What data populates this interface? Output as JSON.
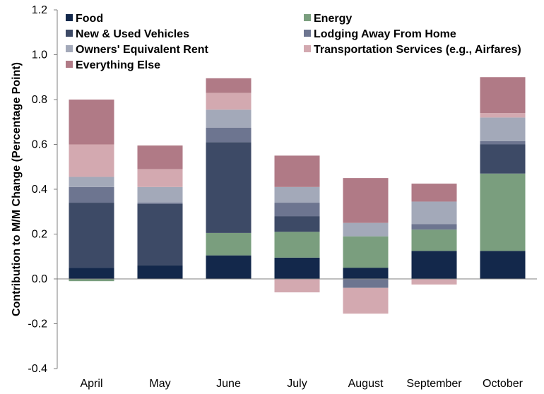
{
  "chart_data": {
    "type": "bar",
    "stacked": true,
    "categories": [
      "April",
      "May",
      "June",
      "July",
      "August",
      "September",
      "October"
    ],
    "ylabel": "Contribution to M/M Change (Percentage Point)",
    "ylim": [
      -0.4,
      1.2
    ],
    "yticks": [
      -0.4,
      -0.2,
      0.0,
      0.2,
      0.4,
      0.6,
      0.8,
      1.0,
      1.2
    ],
    "ytick_labels": [
      "-0.4",
      "-0.2",
      "0.0",
      "0.2",
      "0.4",
      "0.6",
      "0.8",
      "1.0",
      "1.2"
    ],
    "grid": false,
    "legend_position": "top",
    "series": [
      {
        "name": "Food",
        "color": "#13284b",
        "values": [
          0.05,
          0.06,
          0.105,
          0.095,
          0.05,
          0.125,
          0.125
        ]
      },
      {
        "name": "Energy",
        "color": "#7a9e7e",
        "values": [
          -0.01,
          0.0,
          0.1,
          0.115,
          0.14,
          0.095,
          0.345
        ]
      },
      {
        "name": "New & Used Vehicles",
        "color": "#3d4a66",
        "values": [
          0.29,
          0.275,
          0.405,
          0.07,
          0.0,
          0.0,
          0.13
        ]
      },
      {
        "name": "Lodging Away From Home",
        "color": "#6d7590",
        "values": [
          0.07,
          0.005,
          0.065,
          0.06,
          -0.04,
          0.025,
          0.015
        ]
      },
      {
        "name": "Owners' Equivalent Rent",
        "color": "#a3a9b9",
        "values": [
          0.045,
          0.07,
          0.08,
          0.07,
          0.06,
          0.1,
          0.105
        ]
      },
      {
        "name": "Transportation Services (e.g., Airfares)",
        "color": "#d3a9b0",
        "values": [
          0.145,
          0.08,
          0.075,
          -0.06,
          -0.115,
          -0.025,
          0.02
        ]
      },
      {
        "name": "Everything Else",
        "color": "#b07a86",
        "values": [
          0.2,
          0.105,
          0.065,
          0.14,
          0.2,
          0.08,
          0.16
        ]
      }
    ]
  }
}
